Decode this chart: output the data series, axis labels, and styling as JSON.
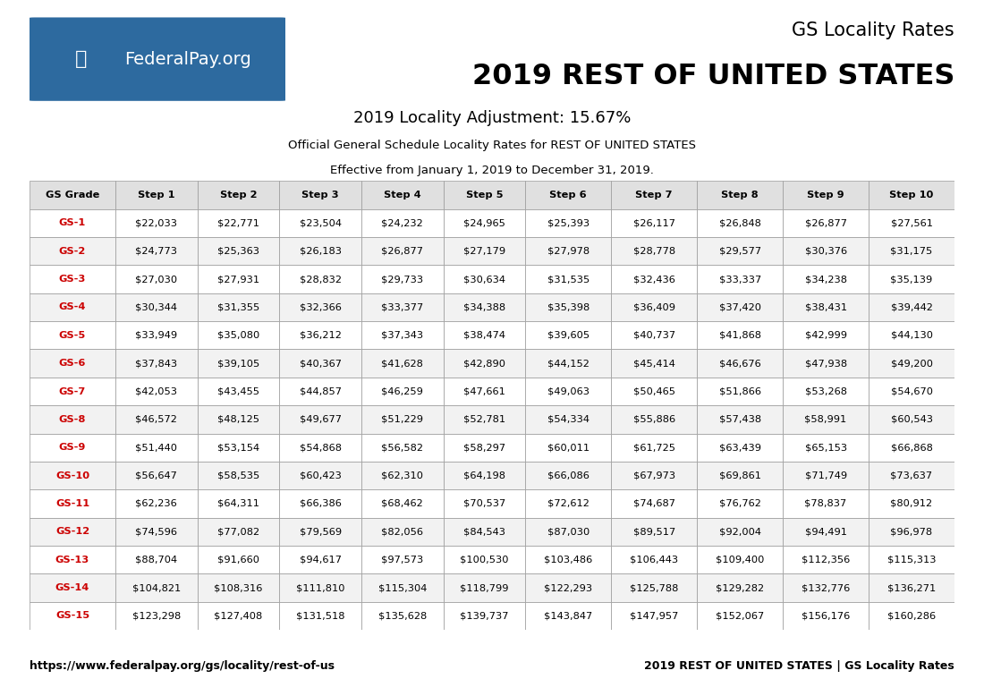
{
  "title_line1": "GS Locality Rates",
  "title_line2": "2019 REST OF UNITED STATES",
  "locality_adjustment": "2019 Locality Adjustment: 15.67%",
  "description_line1": "Official General Schedule Locality Rates for REST OF UNITED STATES",
  "description_line2": "Effective from January 1, 2019 to December 31, 2019.",
  "logo_bg_color": "#2d6a9f",
  "footer_left": "https://www.federalpay.org/gs/locality/rest-of-us",
  "footer_right": "2019 REST OF UNITED STATES | GS Locality Rates",
  "columns": [
    "GS Grade",
    "Step 1",
    "Step 2",
    "Step 3",
    "Step 4",
    "Step 5",
    "Step 6",
    "Step 7",
    "Step 8",
    "Step 9",
    "Step 10"
  ],
  "gs_grades": [
    "GS-1",
    "GS-2",
    "GS-3",
    "GS-4",
    "GS-5",
    "GS-6",
    "GS-7",
    "GS-8",
    "GS-9",
    "GS-10",
    "GS-11",
    "GS-12",
    "GS-13",
    "GS-14",
    "GS-15"
  ],
  "table_data": [
    [
      "$22,033",
      "$22,771",
      "$23,504",
      "$24,232",
      "$24,965",
      "$25,393",
      "$26,117",
      "$26,848",
      "$26,877",
      "$27,561"
    ],
    [
      "$24,773",
      "$25,363",
      "$26,183",
      "$26,877",
      "$27,179",
      "$27,978",
      "$28,778",
      "$29,577",
      "$30,376",
      "$31,175"
    ],
    [
      "$27,030",
      "$27,931",
      "$28,832",
      "$29,733",
      "$30,634",
      "$31,535",
      "$32,436",
      "$33,337",
      "$34,238",
      "$35,139"
    ],
    [
      "$30,344",
      "$31,355",
      "$32,366",
      "$33,377",
      "$34,388",
      "$35,398",
      "$36,409",
      "$37,420",
      "$38,431",
      "$39,442"
    ],
    [
      "$33,949",
      "$35,080",
      "$36,212",
      "$37,343",
      "$38,474",
      "$39,605",
      "$40,737",
      "$41,868",
      "$42,999",
      "$44,130"
    ],
    [
      "$37,843",
      "$39,105",
      "$40,367",
      "$41,628",
      "$42,890",
      "$44,152",
      "$45,414",
      "$46,676",
      "$47,938",
      "$49,200"
    ],
    [
      "$42,053",
      "$43,455",
      "$44,857",
      "$46,259",
      "$47,661",
      "$49,063",
      "$50,465",
      "$51,866",
      "$53,268",
      "$54,670"
    ],
    [
      "$46,572",
      "$48,125",
      "$49,677",
      "$51,229",
      "$52,781",
      "$54,334",
      "$55,886",
      "$57,438",
      "$58,991",
      "$60,543"
    ],
    [
      "$51,440",
      "$53,154",
      "$54,868",
      "$56,582",
      "$58,297",
      "$60,011",
      "$61,725",
      "$63,439",
      "$65,153",
      "$66,868"
    ],
    [
      "$56,647",
      "$58,535",
      "$60,423",
      "$62,310",
      "$64,198",
      "$66,086",
      "$67,973",
      "$69,861",
      "$71,749",
      "$73,637"
    ],
    [
      "$62,236",
      "$64,311",
      "$66,386",
      "$68,462",
      "$70,537",
      "$72,612",
      "$74,687",
      "$76,762",
      "$78,837",
      "$80,912"
    ],
    [
      "$74,596",
      "$77,082",
      "$79,569",
      "$82,056",
      "$84,543",
      "$87,030",
      "$89,517",
      "$92,004",
      "$94,491",
      "$96,978"
    ],
    [
      "$88,704",
      "$91,660",
      "$94,617",
      "$97,573",
      "$100,530",
      "$103,486",
      "$106,443",
      "$109,400",
      "$112,356",
      "$115,313"
    ],
    [
      "$104,821",
      "$108,316",
      "$111,810",
      "$115,304",
      "$118,799",
      "$122,293",
      "$125,788",
      "$129,282",
      "$132,776",
      "$136,271"
    ],
    [
      "$123,298",
      "$127,408",
      "$131,518",
      "$135,628",
      "$139,737",
      "$143,847",
      "$147,957",
      "$152,067",
      "$156,176",
      "$160,286"
    ]
  ],
  "grade_color": "#cc0000",
  "header_bg_color": "#e0e0e0",
  "row_colors": [
    "#ffffff",
    "#f2f2f2"
  ],
  "border_color": "#999999",
  "text_color": "#000000"
}
